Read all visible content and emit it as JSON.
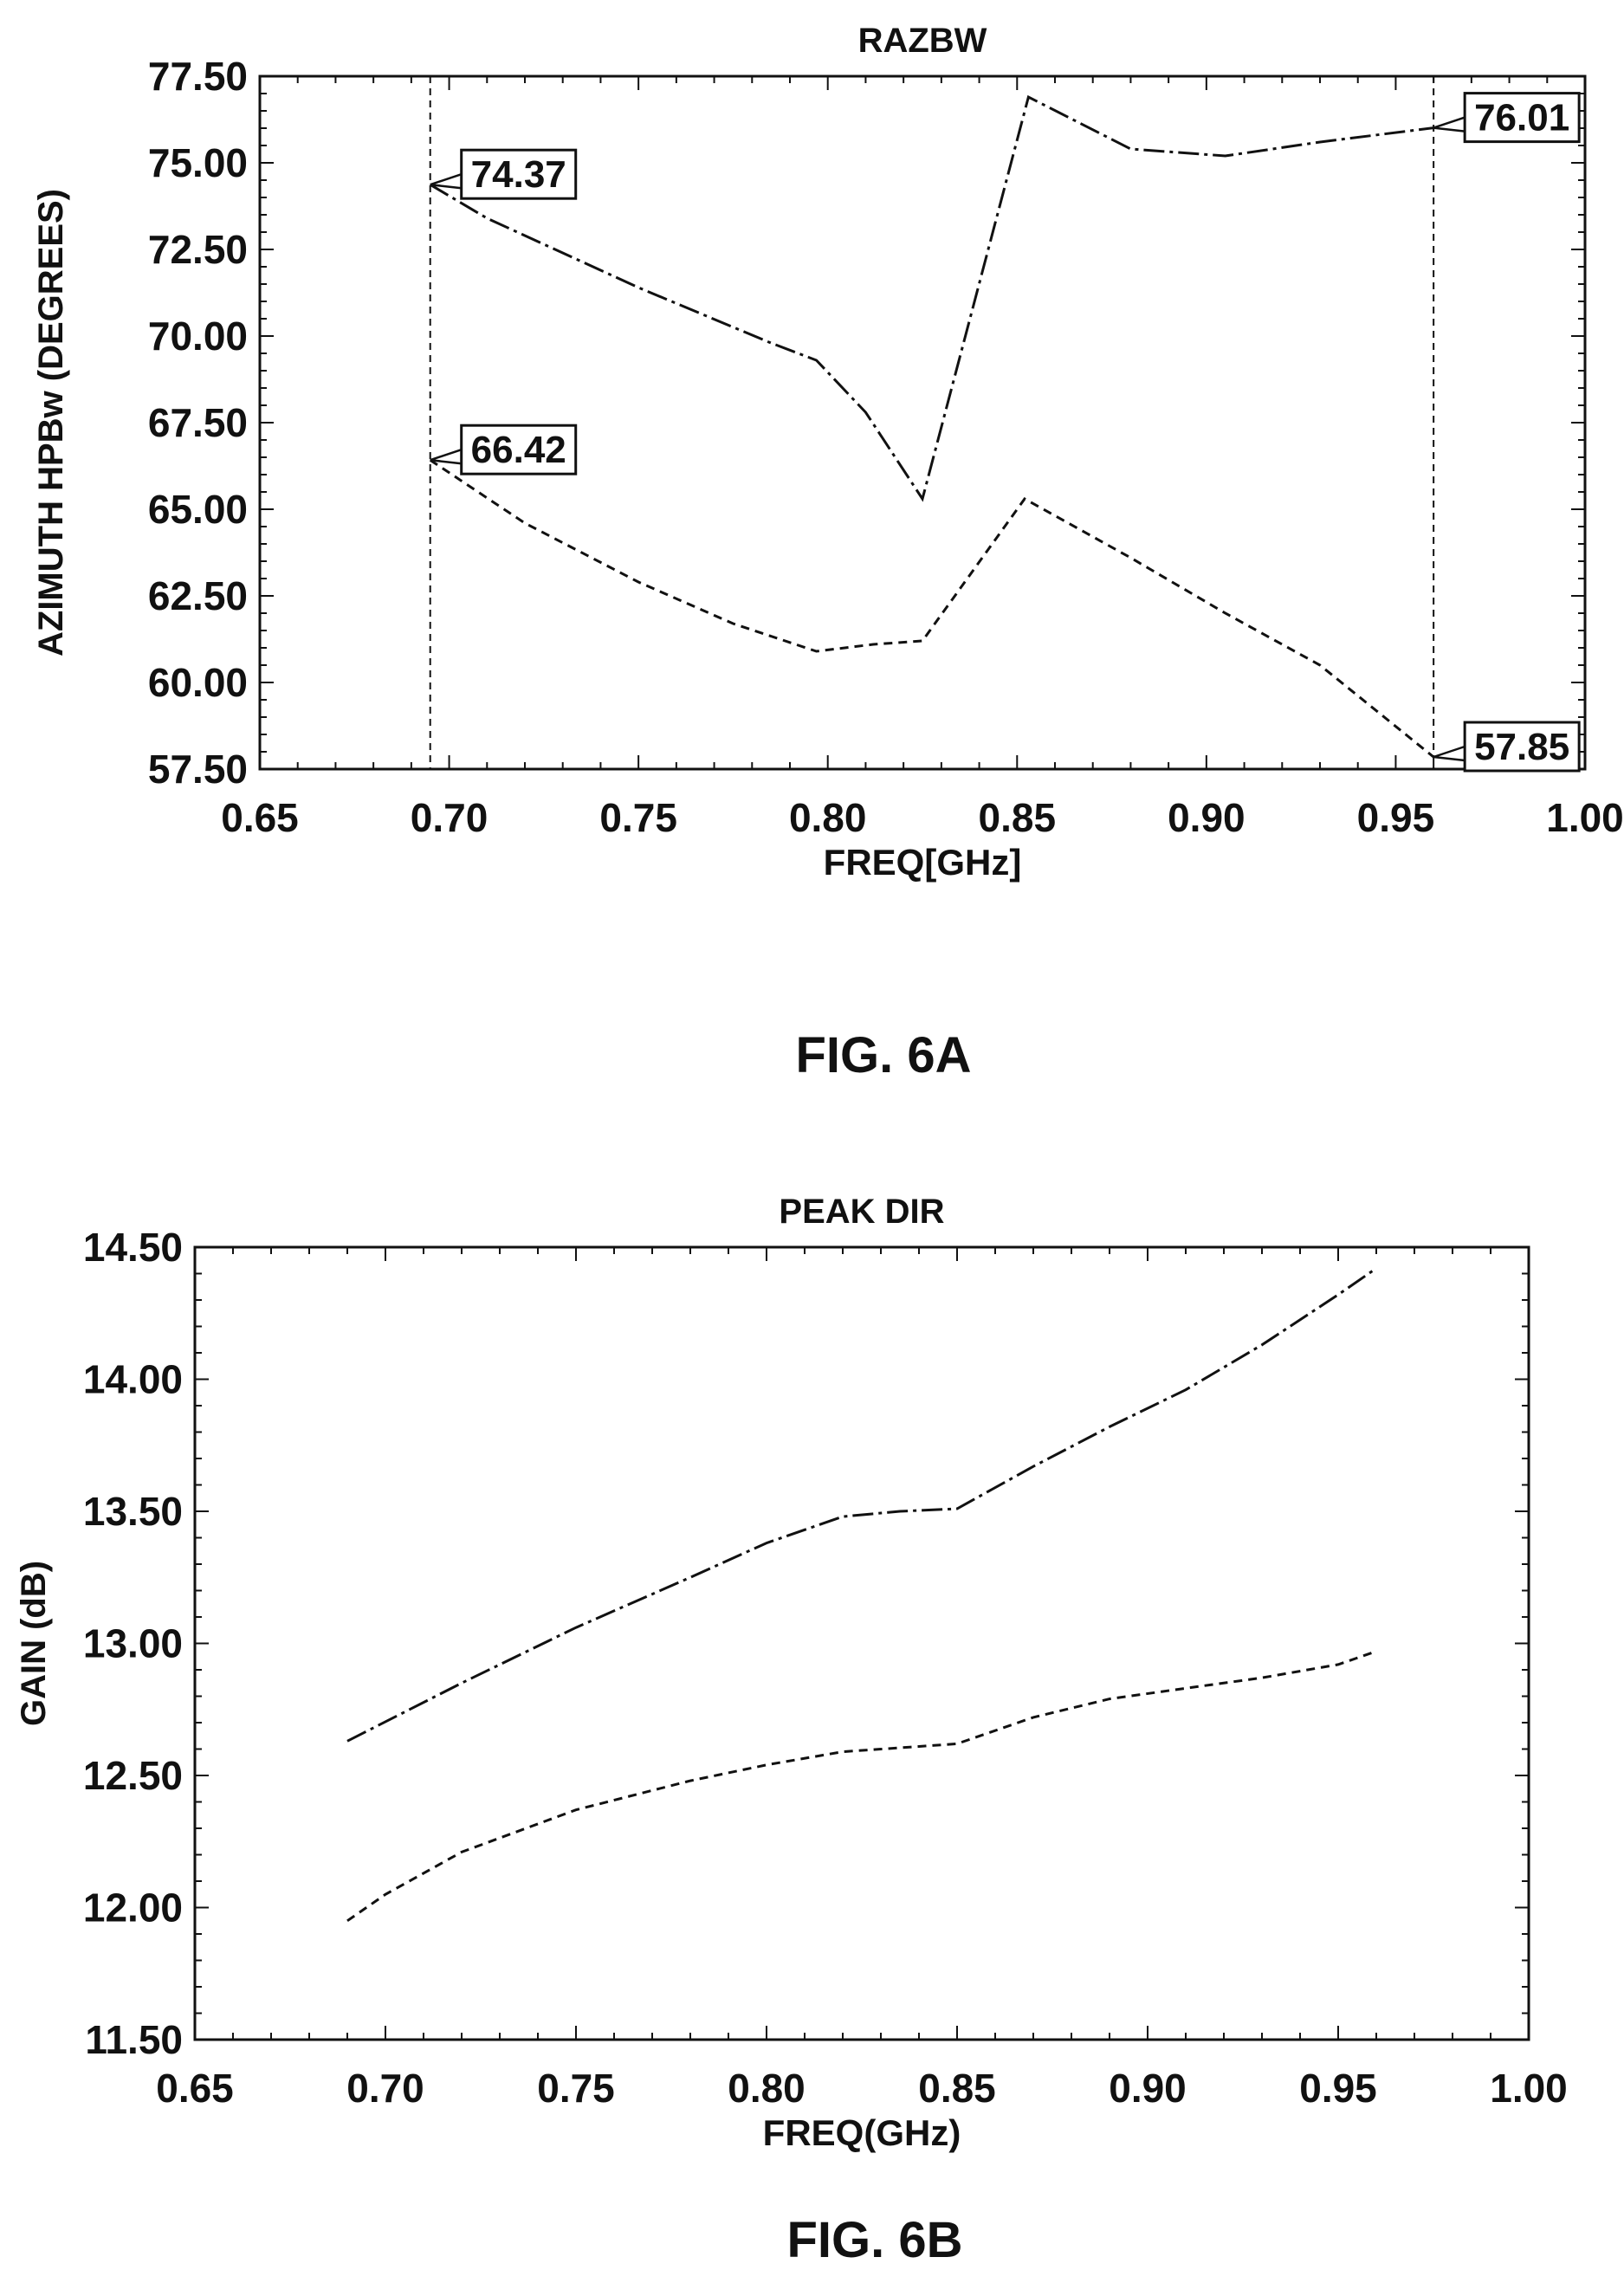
{
  "figures": [
    {
      "id": "A",
      "caption": "FIG. 6A"
    },
    {
      "id": "B",
      "caption": "FIG. 6B"
    }
  ],
  "chart_data": [
    {
      "type": "line",
      "title": "RAZBW",
      "xlabel": "FREQ[GHz]",
      "ylabel": "AZIMUTH HPBw (DEGREES)",
      "xlim": [
        0.65,
        1.0
      ],
      "ylim": [
        57.5,
        77.5
      ],
      "xticks": [
        "0.65",
        "0.70",
        "0.75",
        "0.80",
        "0.85",
        "0.90",
        "0.95",
        "1.00"
      ],
      "yticks": [
        "57.50",
        "60.00",
        "62.50",
        "65.00",
        "67.50",
        "70.00",
        "72.50",
        "75.00",
        "77.50"
      ],
      "grid": false,
      "series": [
        {
          "style": "dash-dot",
          "x": [
            0.695,
            0.71,
            0.75,
            0.785,
            0.797,
            0.81,
            0.825,
            0.853,
            0.88,
            0.905,
            0.93,
            0.96
          ],
          "y": [
            74.37,
            73.4,
            71.4,
            69.8,
            69.3,
            67.8,
            65.3,
            76.9,
            75.4,
            75.2,
            75.6,
            76.01
          ]
        },
        {
          "style": "dashed",
          "x": [
            0.695,
            0.72,
            0.75,
            0.775,
            0.797,
            0.812,
            0.825,
            0.852,
            0.88,
            0.905,
            0.93,
            0.96
          ],
          "y": [
            66.42,
            64.6,
            62.9,
            61.7,
            60.9,
            61.1,
            61.2,
            65.3,
            63.6,
            62.0,
            60.5,
            57.85
          ]
        }
      ],
      "markers": [
        {
          "x": 0.695,
          "y": 74.37,
          "label": "74.37"
        },
        {
          "x": 0.695,
          "y": 66.42,
          "label": "66.42"
        },
        {
          "x": 0.96,
          "y": 76.01,
          "label": "76.01"
        },
        {
          "x": 0.96,
          "y": 57.85,
          "label": "57.85"
        }
      ],
      "reference_lines_x": [
        0.695,
        0.96
      ]
    },
    {
      "type": "line",
      "title": "PEAK DIR",
      "xlabel": "FREQ(GHz)",
      "ylabel": "GAIN (dB)",
      "xlim": [
        0.65,
        1.0
      ],
      "ylim": [
        11.5,
        14.5
      ],
      "xticks": [
        "0.65",
        "0.70",
        "0.75",
        "0.80",
        "0.85",
        "0.90",
        "0.95",
        "1.00"
      ],
      "yticks": [
        "11.50",
        "12.00",
        "12.50",
        "13.00",
        "13.50",
        "14.00",
        "14.50"
      ],
      "grid": false,
      "series": [
        {
          "style": "dash-dot",
          "x": [
            0.69,
            0.72,
            0.75,
            0.78,
            0.8,
            0.82,
            0.835,
            0.85,
            0.87,
            0.89,
            0.91,
            0.93,
            0.95,
            0.96
          ],
          "y": [
            12.63,
            12.85,
            13.06,
            13.25,
            13.38,
            13.48,
            13.5,
            13.51,
            13.67,
            13.82,
            13.96,
            14.13,
            14.32,
            14.42
          ]
        },
        {
          "style": "dashed",
          "x": [
            0.69,
            0.7,
            0.72,
            0.75,
            0.78,
            0.8,
            0.82,
            0.84,
            0.85,
            0.87,
            0.89,
            0.91,
            0.93,
            0.95,
            0.96
          ],
          "y": [
            11.95,
            12.05,
            12.21,
            12.37,
            12.48,
            12.54,
            12.59,
            12.61,
            12.62,
            12.72,
            12.79,
            12.83,
            12.87,
            12.92,
            12.97
          ]
        }
      ]
    }
  ]
}
